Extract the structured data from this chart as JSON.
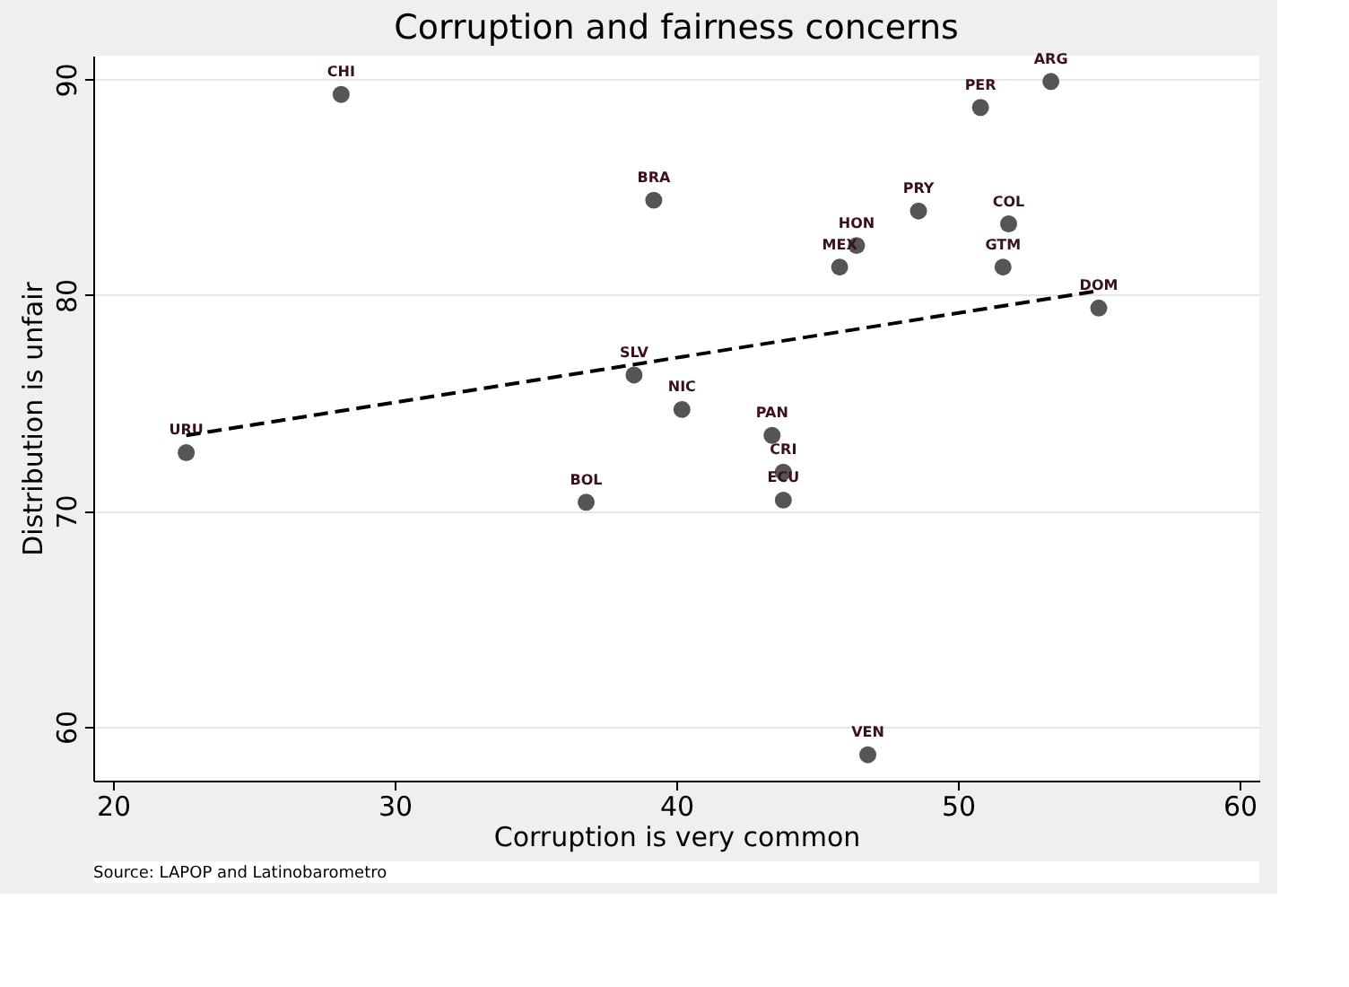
{
  "chart_data": {
    "type": "scatter",
    "title": "Corruption and fairness concerns",
    "xlabel": "Corruption is very common",
    "ylabel": "Distribution is unfair",
    "annotations": [
      "Source: LAPOP and Latinobarometro"
    ],
    "xlim": [
      19.3,
      60.7
    ],
    "ylim": [
      57.5,
      91.1
    ],
    "xticks": [
      20,
      30,
      40,
      50,
      60
    ],
    "yticks": [
      60,
      70,
      80,
      90
    ],
    "grid": "y",
    "marker": "circle",
    "series": [
      {
        "color": "#555555",
        "x": [
          28.1,
          39.2,
          38.5,
          40.2,
          22.6,
          36.8,
          53.3,
          50.8,
          48.6,
          51.8,
          46.4,
          45.8,
          51.6,
          55.0,
          43.4,
          43.8,
          43.8,
          46.8
        ],
        "values": [
          89.3,
          84.4,
          76.3,
          74.7,
          72.7,
          70.4,
          89.9,
          88.7,
          83.9,
          83.3,
          82.3,
          81.3,
          81.3,
          79.4,
          73.5,
          71.8,
          70.5,
          58.7
        ],
        "value_labels": [
          "CHI",
          "BRA",
          "SLV",
          "NIC",
          "URU",
          "BOL",
          "ARG",
          "PER",
          "PRY",
          "COL",
          "HON",
          "MEX",
          "GTM",
          "DOM",
          "PAN",
          "CRI",
          "ECU",
          "VEN"
        ]
      },
      {
        "type": "line",
        "color": "#000000",
        "line_style": "dashed",
        "marker": "none",
        "x": [
          22.6,
          55.0
        ],
        "values": [
          73.5,
          80.2
        ]
      }
    ]
  }
}
